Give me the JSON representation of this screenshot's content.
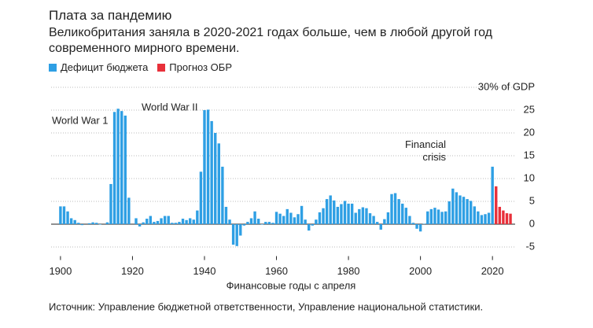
{
  "chart_data": {
    "type": "bar",
    "title": "Плата за пандемию",
    "subtitle": "Великобритания заняла в 2020-2021 годах больше, чем в любой другой год современного мирного времени.",
    "x_label": "Финансовые годы с апреля",
    "source": "Источник: Управление бюджетной ответственности, Управление национальной статистики.",
    "annotations": [
      "World War 1",
      "World War II",
      "Financial crisis"
    ],
    "xlim": [
      1897.4,
      2026.3
    ],
    "xticks": [
      1900,
      1920,
      1940,
      1960,
      1980,
      2000,
      2020
    ],
    "ylim": [
      -7,
      30
    ],
    "yticks": [
      {
        "value": 30,
        "label": "30% of GDP"
      },
      25,
      20,
      15,
      10,
      5,
      0,
      -5
    ],
    "grid": true,
    "x": [
      1900,
      1901,
      1902,
      1903,
      1904,
      1905,
      1906,
      1907,
      1908,
      1909,
      1910,
      1911,
      1912,
      1913,
      1914,
      1915,
      1916,
      1917,
      1918,
      1919,
      1920,
      1921,
      1922,
      1923,
      1924,
      1925,
      1926,
      1927,
      1928,
      1929,
      1930,
      1931,
      1932,
      1933,
      1934,
      1935,
      1936,
      1937,
      1938,
      1939,
      1940,
      1941,
      1942,
      1943,
      1944,
      1945,
      1946,
      1947,
      1948,
      1949,
      1950,
      1951,
      1952,
      1953,
      1954,
      1955,
      1956,
      1957,
      1958,
      1959,
      1960,
      1961,
      1962,
      1963,
      1964,
      1965,
      1966,
      1967,
      1968,
      1969,
      1970,
      1971,
      1972,
      1973,
      1974,
      1975,
      1976,
      1977,
      1978,
      1979,
      1980,
      1981,
      1982,
      1983,
      1984,
      1985,
      1986,
      1987,
      1988,
      1989,
      1990,
      1991,
      1992,
      1993,
      1994,
      1995,
      1996,
      1997,
      1998,
      1999,
      2000,
      2001,
      2002,
      2003,
      2004,
      2005,
      2006,
      2007,
      2008,
      2009,
      2010,
      2011,
      2012,
      2013,
      2014,
      2015,
      2016,
      2017,
      2018,
      2019,
      2020
    ],
    "series": [
      {
        "name": "Дефицит бюджета",
        "color": "#2e9fe4",
        "values": [
          3.9,
          3.9,
          2.8,
          1.3,
          0.9,
          0.3,
          -0.2,
          0,
          0.2,
          0.4,
          0.3,
          -0.1,
          0,
          0.4,
          8.8,
          24.6,
          25.3,
          24.8,
          23.8,
          5.8,
          0,
          1.3,
          -0.5,
          0.4,
          1.2,
          1.8,
          0.5,
          0.7,
          1.3,
          1.8,
          1.8,
          0.3,
          0.3,
          0.5,
          1.2,
          0.9,
          1.3,
          1.0,
          3.0,
          11.5,
          25.0,
          25.1,
          22.6,
          20.0,
          17.7,
          12.6,
          3.8,
          1.0,
          -4.5,
          -4.8,
          -2.5,
          -0.3,
          0.5,
          1.3,
          2.8,
          1.2,
          -0.1,
          0.5,
          0.5,
          0.3,
          2.7,
          2.3,
          1.8,
          3.3,
          2.5,
          1.5,
          2.2,
          4.0,
          1.0,
          -1.4,
          -0.3,
          1.0,
          2.6,
          3.5,
          5.5,
          6.3,
          5.2,
          3.8,
          4.4,
          5.1,
          4.5,
          4.5,
          2.5,
          3.3,
          3.7,
          3.5,
          2.4,
          1.8,
          0.5,
          -1.2,
          1.1,
          2.6,
          6.6,
          6.8,
          5.5,
          4.5,
          3.6,
          1.8,
          0.3,
          -1.0,
          -1.6,
          0.1,
          2.8,
          3.3,
          3.6,
          3.2,
          2.7,
          2.8,
          5.0,
          7.8,
          7.0,
          6.3,
          6.0,
          5.5,
          5.1,
          3.9,
          2.8,
          2.0,
          2.2,
          2.5,
          12.6
        ]
      },
      {
        "name": "Прогноз ОБР",
        "color": "#e8303a",
        "x": [
          2021,
          2022,
          2023,
          2024,
          2025
        ],
        "values": [
          8.3,
          3.8,
          3.0,
          2.4,
          2.3
        ]
      }
    ]
  }
}
